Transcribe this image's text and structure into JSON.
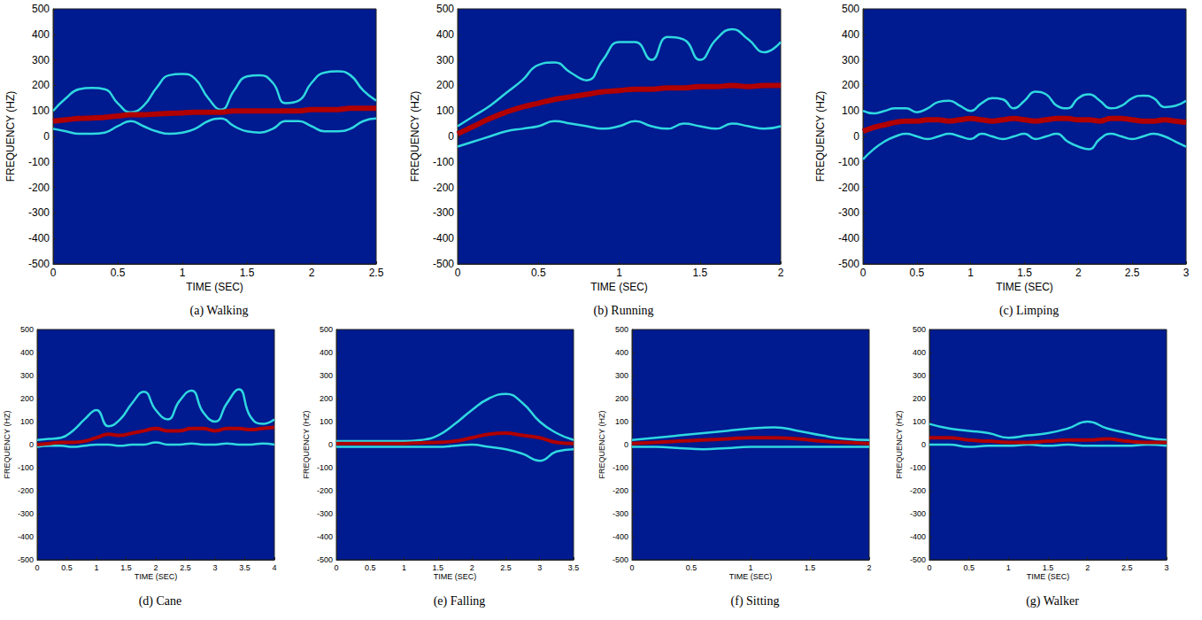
{
  "chart_data": [
    {
      "type": "line",
      "title": "(a) Walking",
      "x_label": "TIME (SEC)",
      "y_label": "FREQUENCY (HZ)",
      "x": [
        0,
        0.1,
        0.2,
        0.3,
        0.4,
        0.5,
        0.6,
        0.7,
        0.8,
        0.9,
        1.0,
        1.1,
        1.2,
        1.3,
        1.4,
        1.5,
        1.6,
        1.7,
        1.8,
        1.9,
        2.0,
        2.1,
        2.2,
        2.3,
        2.4,
        2.5
      ],
      "series": [
        {
          "color": "#2fd8e0",
          "values": [
            100,
            150,
            185,
            190,
            185,
            130,
            95,
            120,
            190,
            240,
            245,
            225,
            150,
            105,
            180,
            235,
            240,
            210,
            130,
            140,
            210,
            250,
            255,
            240,
            180,
            140
          ]
        },
        {
          "color": "#2fd8e0",
          "values": [
            30,
            20,
            10,
            10,
            15,
            40,
            60,
            40,
            20,
            10,
            15,
            30,
            60,
            70,
            40,
            20,
            15,
            30,
            60,
            60,
            40,
            20,
            20,
            30,
            60,
            70
          ]
        },
        {
          "color": "#b00000",
          "values": [
            60,
            65,
            70,
            72,
            75,
            80,
            85,
            85,
            88,
            90,
            92,
            95,
            95,
            95,
            100,
            100,
            100,
            100,
            100,
            100,
            105,
            105,
            105,
            110,
            110,
            110
          ]
        }
      ],
      "xlim": [
        0,
        2.5
      ],
      "xticks": [
        0,
        0.5,
        1,
        1.5,
        2,
        2.5
      ],
      "ylim": [
        -500,
        500
      ],
      "yticks": [
        -500,
        -400,
        -300,
        -200,
        -100,
        0,
        100,
        200,
        300,
        400,
        500
      ],
      "grid": false
    },
    {
      "type": "line",
      "title": "(b) Running",
      "x_label": "TIME (SEC)",
      "y_label": "FREQUENCY (HZ)",
      "x": [
        0,
        0.1,
        0.2,
        0.3,
        0.4,
        0.5,
        0.6,
        0.7,
        0.8,
        0.9,
        1.0,
        1.1,
        1.2,
        1.3,
        1.4,
        1.5,
        1.6,
        1.7,
        1.8,
        1.9,
        2.0
      ],
      "series": [
        {
          "color": "#2fd8e0",
          "values": [
            40,
            80,
            120,
            170,
            220,
            280,
            290,
            250,
            220,
            300,
            370,
            370,
            300,
            390,
            380,
            300,
            380,
            420,
            380,
            330,
            370
          ]
        },
        {
          "color": "#2fd8e0",
          "values": [
            -40,
            -20,
            0,
            20,
            30,
            40,
            60,
            50,
            40,
            30,
            40,
            60,
            40,
            30,
            50,
            40,
            30,
            50,
            40,
            30,
            40
          ]
        },
        {
          "color": "#b00000",
          "values": [
            10,
            40,
            70,
            95,
            115,
            130,
            145,
            155,
            165,
            175,
            180,
            185,
            185,
            190,
            190,
            195,
            195,
            200,
            195,
            200,
            200
          ]
        }
      ],
      "xlim": [
        0,
        2
      ],
      "xticks": [
        0,
        0.5,
        1,
        1.5,
        2
      ],
      "ylim": [
        -500,
        500
      ],
      "yticks": [
        -500,
        -400,
        -300,
        -200,
        -100,
        0,
        100,
        200,
        300,
        400,
        500
      ],
      "grid": false
    },
    {
      "type": "line",
      "title": "(c) Limping",
      "x_label": "TIME (SEC)",
      "y_label": "FREQUENCY (HZ)",
      "x": [
        0,
        0.1,
        0.2,
        0.3,
        0.4,
        0.5,
        0.6,
        0.7,
        0.8,
        0.9,
        1.0,
        1.1,
        1.2,
        1.3,
        1.4,
        1.5,
        1.6,
        1.7,
        1.8,
        1.9,
        2.0,
        2.1,
        2.2,
        2.3,
        2.4,
        2.5,
        2.6,
        2.7,
        2.8,
        2.9,
        3.0
      ],
      "series": [
        {
          "color": "#2fd8e0",
          "values": [
            100,
            90,
            100,
            110,
            110,
            95,
            110,
            135,
            140,
            120,
            100,
            130,
            150,
            145,
            110,
            140,
            175,
            165,
            120,
            110,
            150,
            165,
            140,
            110,
            120,
            150,
            160,
            150,
            115,
            120,
            140
          ]
        },
        {
          "color": "#2fd8e0",
          "values": [
            -90,
            -50,
            -20,
            0,
            10,
            0,
            -10,
            0,
            10,
            0,
            -10,
            10,
            0,
            -10,
            0,
            10,
            -10,
            0,
            10,
            -20,
            -40,
            -50,
            -10,
            10,
            0,
            -10,
            0,
            10,
            0,
            -20,
            -40
          ]
        },
        {
          "color": "#b00000",
          "values": [
            20,
            35,
            45,
            55,
            60,
            60,
            65,
            65,
            60,
            65,
            70,
            65,
            60,
            65,
            70,
            65,
            60,
            65,
            70,
            70,
            65,
            65,
            60,
            70,
            70,
            65,
            60,
            60,
            65,
            60,
            55
          ]
        }
      ],
      "xlim": [
        0,
        3
      ],
      "xticks": [
        0,
        0.5,
        1,
        1.5,
        2,
        2.5,
        3
      ],
      "ylim": [
        -500,
        500
      ],
      "yticks": [
        -500,
        -400,
        -300,
        -200,
        -100,
        0,
        100,
        200,
        300,
        400,
        500
      ],
      "grid": false
    },
    {
      "type": "line",
      "title": "(d) Cane",
      "x_label": "TIME (SEC)",
      "y_label": "FREQUENCY (HZ)",
      "x": [
        0,
        0.2,
        0.4,
        0.6,
        0.8,
        1.0,
        1.2,
        1.4,
        1.6,
        1.8,
        2.0,
        2.2,
        2.4,
        2.6,
        2.8,
        3.0,
        3.2,
        3.4,
        3.6,
        3.8,
        4.0
      ],
      "series": [
        {
          "color": "#2fd8e0",
          "values": [
            20,
            25,
            30,
            60,
            110,
            150,
            80,
            110,
            180,
            230,
            150,
            110,
            190,
            235,
            140,
            100,
            180,
            240,
            120,
            90,
            110
          ]
        },
        {
          "color": "#2fd8e0",
          "values": [
            -10,
            -5,
            -5,
            -10,
            -5,
            0,
            0,
            -5,
            0,
            0,
            10,
            0,
            0,
            5,
            0,
            0,
            5,
            0,
            0,
            5,
            0
          ]
        },
        {
          "color": "#b00000",
          "values": [
            0,
            5,
            10,
            10,
            15,
            30,
            45,
            40,
            50,
            60,
            70,
            60,
            60,
            70,
            70,
            60,
            70,
            70,
            65,
            70,
            75
          ]
        }
      ],
      "xlim": [
        0,
        4
      ],
      "xticks": [
        0,
        0.5,
        1,
        1.5,
        2,
        2.5,
        3,
        3.5,
        4
      ],
      "ylim": [
        -500,
        500
      ],
      "yticks": [
        -500,
        -400,
        -300,
        -200,
        -100,
        0,
        100,
        200,
        300,
        400,
        500
      ],
      "grid": false
    },
    {
      "type": "line",
      "title": "(e) Falling",
      "x_label": "TIME (SEC)",
      "y_label": "FREQUENCY (HZ)",
      "x": [
        0,
        0.25,
        0.5,
        0.75,
        1.0,
        1.25,
        1.5,
        1.75,
        2.0,
        2.25,
        2.5,
        2.75,
        3.0,
        3.25,
        3.5
      ],
      "series": [
        {
          "color": "#2fd8e0",
          "values": [
            15,
            15,
            15,
            15,
            15,
            20,
            40,
            90,
            150,
            200,
            220,
            180,
            100,
            50,
            20
          ]
        },
        {
          "color": "#2fd8e0",
          "values": [
            -10,
            -10,
            -10,
            -10,
            -10,
            -10,
            -10,
            -5,
            0,
            -10,
            -20,
            -40,
            -70,
            -30,
            -20
          ]
        },
        {
          "color": "#b00000",
          "values": [
            5,
            5,
            5,
            5,
            5,
            8,
            10,
            15,
            30,
            45,
            50,
            40,
            30,
            10,
            5
          ]
        }
      ],
      "xlim": [
        0,
        3.5
      ],
      "xticks": [
        0,
        0.5,
        1,
        1.5,
        2,
        2.5,
        3,
        3.5
      ],
      "ylim": [
        -500,
        500
      ],
      "yticks": [
        -500,
        -400,
        -300,
        -200,
        -100,
        0,
        100,
        200,
        300,
        400,
        500
      ],
      "grid": false
    },
    {
      "type": "line",
      "title": "(f) Sitting",
      "x_label": "TIME (SEC)",
      "y_label": "FREQUENCY (HZ)",
      "x": [
        0,
        0.2,
        0.4,
        0.6,
        0.8,
        1.0,
        1.2,
        1.4,
        1.6,
        1.8,
        2.0
      ],
      "series": [
        {
          "color": "#2fd8e0",
          "values": [
            20,
            30,
            40,
            50,
            60,
            70,
            75,
            60,
            40,
            25,
            20
          ]
        },
        {
          "color": "#2fd8e0",
          "values": [
            -10,
            -10,
            -15,
            -20,
            -15,
            -10,
            -10,
            -10,
            -10,
            -10,
            -10
          ]
        },
        {
          "color": "#b00000",
          "values": [
            5,
            10,
            15,
            20,
            25,
            30,
            30,
            25,
            15,
            10,
            5
          ]
        }
      ],
      "xlim": [
        0,
        2
      ],
      "xticks": [
        0,
        0.5,
        1,
        1.5,
        2
      ],
      "ylim": [
        -500,
        500
      ],
      "yticks": [
        -500,
        -400,
        -300,
        -200,
        -100,
        0,
        100,
        200,
        300,
        400,
        500
      ],
      "grid": false
    },
    {
      "type": "line",
      "title": "(g) Walker",
      "x_label": "TIME (SEC)",
      "y_label": "FREQUENCY (HZ)",
      "x": [
        0,
        0.25,
        0.5,
        0.75,
        1.0,
        1.25,
        1.5,
        1.75,
        2.0,
        2.25,
        2.5,
        2.75,
        3.0
      ],
      "series": [
        {
          "color": "#2fd8e0",
          "values": [
            90,
            70,
            60,
            50,
            30,
            40,
            50,
            70,
            100,
            70,
            50,
            30,
            20
          ]
        },
        {
          "color": "#2fd8e0",
          "values": [
            0,
            0,
            -10,
            -5,
            -5,
            0,
            -5,
            0,
            -5,
            -5,
            -5,
            0,
            -5
          ]
        },
        {
          "color": "#b00000",
          "values": [
            30,
            30,
            20,
            15,
            10,
            10,
            15,
            20,
            20,
            25,
            15,
            10,
            10
          ]
        }
      ],
      "xlim": [
        0,
        3
      ],
      "xticks": [
        0,
        0.5,
        1,
        1.5,
        2,
        2.5,
        3
      ],
      "ylim": [
        -500,
        500
      ],
      "yticks": [
        -500,
        -400,
        -300,
        -200,
        -100,
        0,
        100,
        200,
        300,
        400,
        500
      ],
      "grid": false
    }
  ]
}
